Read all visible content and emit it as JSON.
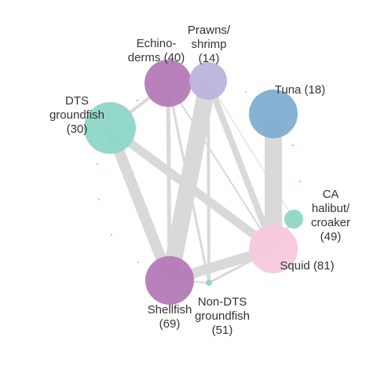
{
  "network": {
    "nodes": [
      {
        "id": "echinoderms",
        "name": "echinoderms-node",
        "label_lines": [
          "Echino-",
          "derms (40)"
        ],
        "color": "#b57ab8"
      },
      {
        "id": "prawns",
        "name": "prawns-shrimp-node",
        "label_lines": [
          "Prawns/",
          "shrimp",
          "(14)"
        ],
        "color": "#bdb3dc"
      },
      {
        "id": "tuna",
        "name": "tuna-node",
        "label_lines": [
          "Tuna (18)"
        ],
        "color": "#80aed3"
      },
      {
        "id": "dts",
        "name": "dts-groundfish-node",
        "label_lines": [
          "DTS",
          "groundfish",
          "(30)"
        ],
        "color": "#8ed6c6"
      },
      {
        "id": "cahalibut",
        "name": "ca-halibut-croaker-node",
        "label_lines": [
          "CA",
          "halibut/",
          "croaker",
          "(49)"
        ],
        "color": "#8ed6c6"
      },
      {
        "id": "squid",
        "name": "squid-node",
        "label_lines": [
          "Squid (81)"
        ],
        "color": "#f8c8df"
      },
      {
        "id": "shellfish",
        "name": "shellfish-node",
        "label_lines": [
          "Shellfish",
          "(69)"
        ],
        "color": "#b57ab8"
      },
      {
        "id": "nondts",
        "name": "non-dts-groundfish-node",
        "label_lines": [
          "Non-DTS",
          "groundfish",
          "(51)"
        ],
        "color": "#8ed6c6"
      }
    ],
    "edge_color": "#d9d9d9",
    "edges": [
      {
        "source": "tuna",
        "target": "squid",
        "weight": 22
      },
      {
        "source": "prawns",
        "target": "shellfish",
        "weight": 22
      },
      {
        "source": "dts",
        "target": "shellfish",
        "weight": 14
      },
      {
        "source": "dts",
        "target": "squid",
        "weight": 11
      },
      {
        "source": "shellfish",
        "target": "squid",
        "weight": 13
      },
      {
        "source": "prawns",
        "target": "squid",
        "weight": 8
      },
      {
        "source": "echinoderms",
        "target": "shellfish",
        "weight": 5
      },
      {
        "source": "prawns",
        "target": "nondts",
        "weight": 4
      },
      {
        "source": "echinoderms",
        "target": "prawns",
        "weight": 5
      },
      {
        "source": "dts",
        "target": "echinoderms",
        "weight": 4
      },
      {
        "source": "echinoderms",
        "target": "nondts",
        "weight": 3
      },
      {
        "source": "nondts",
        "target": "squid",
        "weight": 3
      },
      {
        "source": "shellfish",
        "target": "nondts",
        "weight": 2
      },
      {
        "source": "echinoderms",
        "target": "squid",
        "weight": 2
      },
      {
        "source": "cahalibut",
        "target": "squid",
        "weight": 3
      },
      {
        "source": "prawns",
        "target": "cahalibut",
        "weight": 1
      }
    ]
  }
}
